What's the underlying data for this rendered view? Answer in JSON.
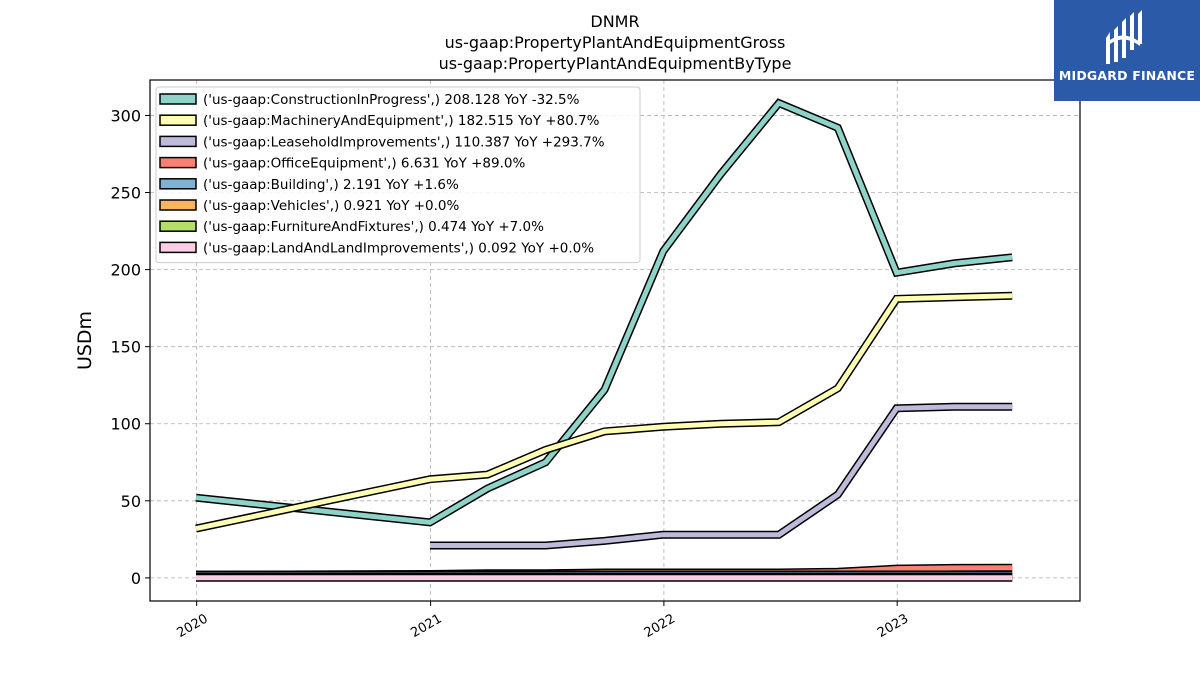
{
  "chart_data": {
    "type": "line",
    "title": [
      "DNMR",
      "us-gaap:PropertyPlantAndEquipmentGross",
      "us-gaap:PropertyPlantAndEquipmentByType"
    ],
    "ylabel": "USDm",
    "xlabel": "",
    "xlim": [
      "2019-10-20",
      "2023-10-14"
    ],
    "ylim": [
      -15,
      323
    ],
    "x_ticks": [
      "2020",
      "2021",
      "2022",
      "2023"
    ],
    "y_ticks": [
      0,
      50,
      100,
      150,
      200,
      250,
      300
    ],
    "grid": true,
    "legend_position": "upper-left",
    "series": [
      {
        "name": "('us-gaap:ConstructionInProgress',) 208.128 YoY -32.5%",
        "color": "#8dd3c7",
        "points": [
          [
            "2019-12-31",
            52
          ],
          [
            "2020-12-31",
            36
          ],
          [
            "2021-03-31",
            58
          ],
          [
            "2021-06-30",
            75
          ],
          [
            "2021-09-30",
            122
          ],
          [
            "2021-12-31",
            212
          ],
          [
            "2022-03-31",
            262
          ],
          [
            "2022-06-30",
            308
          ],
          [
            "2022-09-30",
            292
          ],
          [
            "2022-12-31",
            198
          ],
          [
            "2023-03-31",
            204
          ],
          [
            "2023-06-30",
            208
          ]
        ]
      },
      {
        "name": "('us-gaap:MachineryAndEquipment',) 182.515 YoY +80.7%",
        "color": "#ffffb3",
        "points": [
          [
            "2019-12-31",
            32
          ],
          [
            "2020-12-31",
            64
          ],
          [
            "2021-03-31",
            67
          ],
          [
            "2021-06-30",
            83
          ],
          [
            "2021-09-30",
            95
          ],
          [
            "2021-12-31",
            98
          ],
          [
            "2022-03-31",
            100
          ],
          [
            "2022-06-30",
            101
          ],
          [
            "2022-09-30",
            123
          ],
          [
            "2022-12-31",
            181
          ],
          [
            "2023-03-31",
            182
          ],
          [
            "2023-06-30",
            183
          ]
        ]
      },
      {
        "name": "('us-gaap:LeaseholdImprovements',) 110.387 YoY +293.7%",
        "color": "#bebada",
        "points": [
          [
            "2020-12-31",
            21
          ],
          [
            "2021-03-31",
            21
          ],
          [
            "2021-06-30",
            21
          ],
          [
            "2021-09-30",
            24
          ],
          [
            "2021-12-31",
            28
          ],
          [
            "2022-03-31",
            28
          ],
          [
            "2022-06-30",
            28
          ],
          [
            "2022-09-30",
            54
          ],
          [
            "2022-12-31",
            110
          ],
          [
            "2023-03-31",
            111
          ],
          [
            "2023-06-30",
            111
          ]
        ]
      },
      {
        "name": "('us-gaap:OfficeEquipment',) 6.631 YoY +89.0%",
        "color": "#fb8072",
        "points": [
          [
            "2019-12-31",
            2
          ],
          [
            "2020-12-31",
            2.5
          ],
          [
            "2021-03-31",
            3
          ],
          [
            "2021-06-30",
            3
          ],
          [
            "2021-09-30",
            3.5
          ],
          [
            "2021-12-31",
            3.5
          ],
          [
            "2022-03-31",
            3.5
          ],
          [
            "2022-06-30",
            3.5
          ],
          [
            "2022-09-30",
            4
          ],
          [
            "2022-12-31",
            6
          ],
          [
            "2023-03-31",
            6.5
          ],
          [
            "2023-06-30",
            6.6
          ]
        ]
      },
      {
        "name": "('us-gaap:Building',) 2.191 YoY +1.6%",
        "color": "#80b1d3",
        "points": [
          [
            "2019-12-31",
            2.1
          ],
          [
            "2020-12-31",
            2.1
          ],
          [
            "2021-12-31",
            2.2
          ],
          [
            "2022-12-31",
            2.2
          ],
          [
            "2023-06-30",
            2.2
          ]
        ]
      },
      {
        "name": "('us-gaap:Vehicles',) 0.921 YoY +0.0%",
        "color": "#fdb462",
        "points": [
          [
            "2019-12-31",
            0.9
          ],
          [
            "2020-12-31",
            0.9
          ],
          [
            "2021-12-31",
            0.9
          ],
          [
            "2022-12-31",
            0.9
          ],
          [
            "2023-06-30",
            0.9
          ]
        ]
      },
      {
        "name": "('us-gaap:FurnitureAndFixtures',) 0.474 YoY +7.0%",
        "color": "#b3de69",
        "points": [
          [
            "2019-12-31",
            0.4
          ],
          [
            "2020-12-31",
            0.4
          ],
          [
            "2021-12-31",
            0.45
          ],
          [
            "2022-12-31",
            0.47
          ],
          [
            "2023-06-30",
            0.47
          ]
        ]
      },
      {
        "name": "('us-gaap:LandAndLandImprovements',) 0.092 YoY +0.0%",
        "color": "#fccde5",
        "points": [
          [
            "2019-12-31",
            0.1
          ],
          [
            "2020-12-31",
            0.1
          ],
          [
            "2021-12-31",
            0.1
          ],
          [
            "2022-12-31",
            0.1
          ],
          [
            "2023-06-30",
            0.1
          ]
        ]
      }
    ]
  },
  "logo": {
    "text": "MIDGARD FINANCE"
  }
}
